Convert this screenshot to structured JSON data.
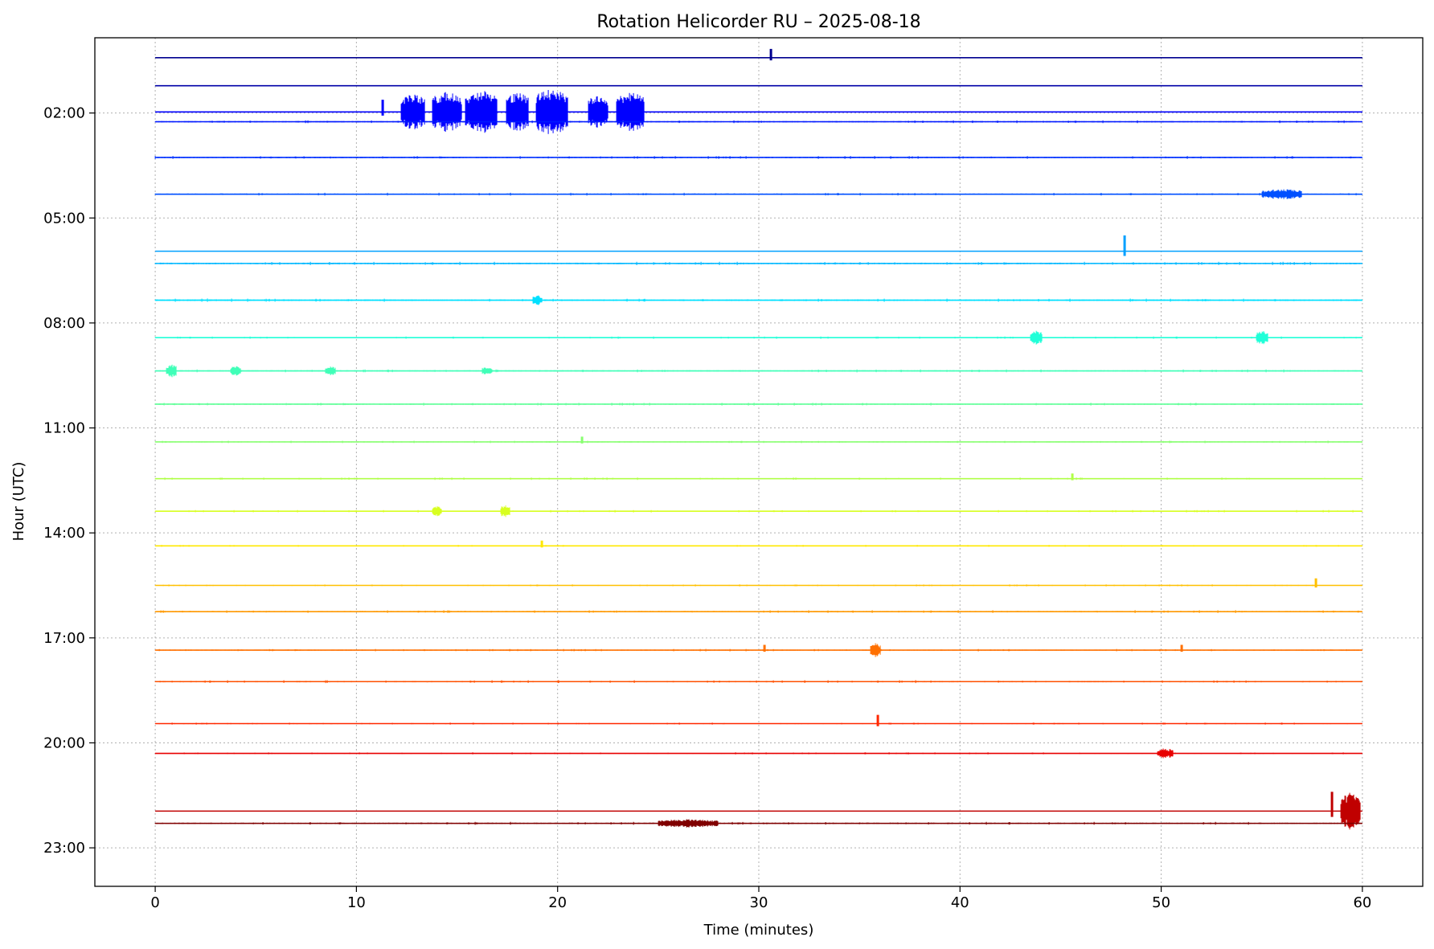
{
  "chart_data": {
    "type": "line",
    "title": "Rotation Helicorder RU – 2025-08-18",
    "xlabel": "Time (minutes)",
    "ylabel": "Hour (UTC)",
    "xlim": [
      -3,
      63
    ],
    "ylim": [
      24.1,
      -0.15
    ],
    "x_ticks": [
      0,
      10,
      20,
      30,
      40,
      50,
      60
    ],
    "x_tick_labels": [
      "0",
      "10",
      "20",
      "30",
      "40",
      "50",
      "60"
    ],
    "y_ticks": [
      2,
      5,
      8,
      11,
      14,
      17,
      20,
      23
    ],
    "y_tick_labels": [
      "02:00",
      "05:00",
      "08:00",
      "11:00",
      "14:00",
      "17:00",
      "20:00",
      "23:00"
    ],
    "grid": true,
    "colormap": "jet",
    "series": [
      {
        "hour": 0,
        "baseline": 0.42,
        "color": "#00008f",
        "noise": 0.15,
        "events": [
          {
            "t": 30.6,
            "amp": 0.25,
            "kind": "spike"
          }
        ]
      },
      {
        "hour": 1,
        "baseline": 1.22,
        "color": "#0000a8",
        "noise": 0.15,
        "events": []
      },
      {
        "hour": 2,
        "baseline": 1.97,
        "color": "#0000ff",
        "noise": 0.05,
        "events": [
          {
            "t": 11.3,
            "amp": 0.35,
            "kind": "spike"
          },
          {
            "t": 12.8,
            "amp": 0.55,
            "kind": "burst",
            "dur": 1.2
          },
          {
            "t": 14.5,
            "amp": 0.6,
            "kind": "burst",
            "dur": 1.5
          },
          {
            "t": 16.2,
            "amp": 0.65,
            "kind": "burst",
            "dur": 1.6
          },
          {
            "t": 18.0,
            "amp": 0.6,
            "kind": "burst",
            "dur": 1.1
          },
          {
            "t": 19.7,
            "amp": 0.7,
            "kind": "burst",
            "dur": 1.6
          },
          {
            "t": 22.0,
            "amp": 0.5,
            "kind": "burst",
            "dur": 1.0
          },
          {
            "t": 23.6,
            "amp": 0.6,
            "kind": "burst",
            "dur": 1.4
          }
        ]
      },
      {
        "hour": 3,
        "baseline": 2.25,
        "color": "#0018ff",
        "noise": 0.6,
        "events": []
      },
      {
        "hour": 4,
        "baseline": 3.27,
        "color": "#0030ff",
        "noise": 0.6,
        "events": []
      },
      {
        "hour": 5,
        "baseline": 4.32,
        "color": "#0050ff",
        "noise": 0.6,
        "events": [
          {
            "t": 56.0,
            "amp": 0.15,
            "kind": "burst",
            "dur": 2.0
          }
        ]
      },
      {
        "hour": 6,
        "baseline": 5.95,
        "color": "#00a0ff",
        "noise": 0.05,
        "events": [
          {
            "t": 48.2,
            "amp": 0.45,
            "kind": "spike"
          }
        ]
      },
      {
        "hour": 7,
        "baseline": 6.3,
        "color": "#00b8ff",
        "noise": 0.7,
        "events": []
      },
      {
        "hour": 8,
        "baseline": 7.35,
        "color": "#00e0ff",
        "noise": 0.7,
        "events": [
          {
            "t": 19.0,
            "amp": 0.15,
            "kind": "burst",
            "dur": 0.5
          }
        ]
      },
      {
        "hour": 9,
        "baseline": 8.42,
        "color": "#20ffd8",
        "noise": 0.5,
        "events": [
          {
            "t": 43.8,
            "amp": 0.2,
            "kind": "burst",
            "dur": 0.6
          },
          {
            "t": 55.0,
            "amp": 0.22,
            "kind": "burst",
            "dur": 0.6
          }
        ]
      },
      {
        "hour": 10,
        "baseline": 9.37,
        "color": "#40ffb8",
        "noise": 0.6,
        "events": [
          {
            "t": 0.8,
            "amp": 0.2,
            "kind": "burst",
            "dur": 0.5
          },
          {
            "t": 4.0,
            "amp": 0.15,
            "kind": "burst",
            "dur": 0.5
          },
          {
            "t": 8.7,
            "amp": 0.15,
            "kind": "burst",
            "dur": 0.5
          },
          {
            "t": 16.5,
            "amp": 0.12,
            "kind": "burst",
            "dur": 0.5
          }
        ]
      },
      {
        "hour": 11,
        "baseline": 10.32,
        "color": "#60ff98",
        "noise": 0.6,
        "events": []
      },
      {
        "hour": 12,
        "baseline": 11.4,
        "color": "#88ff70",
        "noise": 0.5,
        "events": [
          {
            "t": 21.2,
            "amp": 0.15,
            "kind": "spike"
          }
        ]
      },
      {
        "hour": 13,
        "baseline": 12.45,
        "color": "#b0ff48",
        "noise": 0.5,
        "events": [
          {
            "t": 45.6,
            "amp": 0.15,
            "kind": "spike"
          }
        ]
      },
      {
        "hour": 14,
        "baseline": 13.38,
        "color": "#d8ff20",
        "noise": 0.5,
        "events": [
          {
            "t": 14.0,
            "amp": 0.15,
            "kind": "burst",
            "dur": 0.5
          },
          {
            "t": 17.4,
            "amp": 0.18,
            "kind": "burst",
            "dur": 0.5
          }
        ]
      },
      {
        "hour": 15,
        "baseline": 14.37,
        "color": "#ffe800",
        "noise": 0.4,
        "events": [
          {
            "t": 19.2,
            "amp": 0.15,
            "kind": "spike"
          }
        ]
      },
      {
        "hour": 16,
        "baseline": 15.5,
        "color": "#ffc000",
        "noise": 0.4,
        "events": [
          {
            "t": 57.7,
            "amp": 0.2,
            "kind": "spike"
          }
        ]
      },
      {
        "hour": 17,
        "baseline": 16.25,
        "color": "#ff9800",
        "noise": 0.6,
        "events": []
      },
      {
        "hour": 18,
        "baseline": 17.35,
        "color": "#ff7000",
        "noise": 0.5,
        "events": [
          {
            "t": 30.3,
            "amp": 0.15,
            "kind": "spike"
          },
          {
            "t": 35.8,
            "amp": 0.2,
            "kind": "burst",
            "dur": 0.5
          },
          {
            "t": 51.0,
            "amp": 0.15,
            "kind": "spike"
          }
        ]
      },
      {
        "hour": 19,
        "baseline": 18.25,
        "color": "#ff5000",
        "noise": 0.6,
        "events": []
      },
      {
        "hour": 20,
        "baseline": 19.45,
        "color": "#ff2800",
        "noise": 0.4,
        "events": [
          {
            "t": 35.9,
            "amp": 0.25,
            "kind": "spike"
          }
        ]
      },
      {
        "hour": 21,
        "baseline": 20.3,
        "color": "#e80000",
        "noise": 0.4,
        "events": [
          {
            "t": 50.2,
            "amp": 0.15,
            "kind": "burst",
            "dur": 0.8
          }
        ]
      },
      {
        "hour": 22,
        "baseline": 21.95,
        "color": "#c00000",
        "noise": 0.05,
        "events": [
          {
            "t": 58.5,
            "amp": 0.55,
            "kind": "spike"
          },
          {
            "t": 59.4,
            "amp": 0.55,
            "kind": "burst",
            "dur": 1.0
          }
        ]
      },
      {
        "hour": 23,
        "baseline": 22.3,
        "color": "#800000",
        "noise": 0.6,
        "events": [
          {
            "t": 26.5,
            "amp": 0.12,
            "kind": "burst",
            "dur": 3.0
          }
        ]
      }
    ]
  }
}
